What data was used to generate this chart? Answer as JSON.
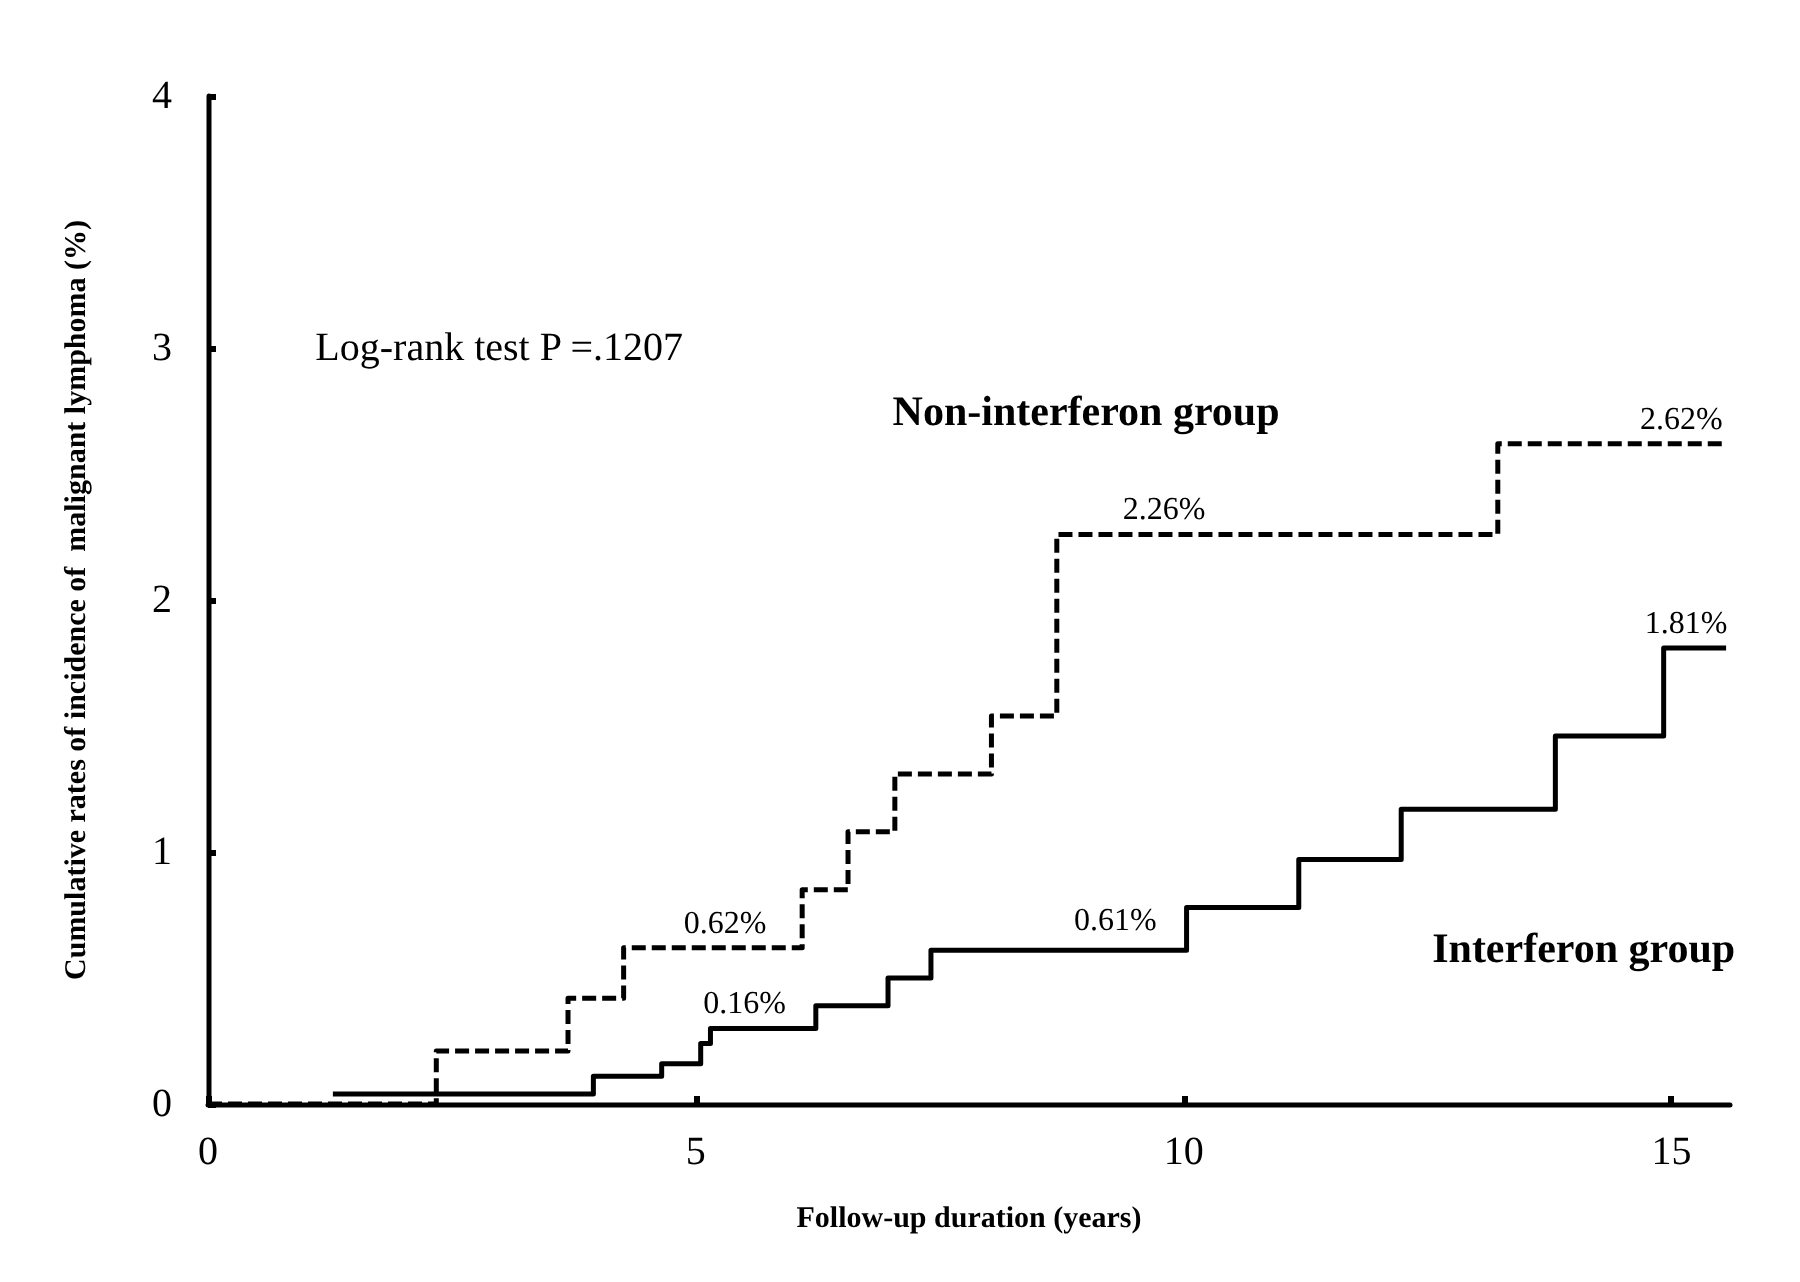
{
  "chart_data": {
    "type": "step",
    "xlabel": "Follow-up duration (years)",
    "ylabel": "Cumulative rates of incidence of  malignant lymphoma (%)",
    "xlim": [
      0,
      15.6
    ],
    "xticks": [
      0,
      5,
      10,
      15
    ],
    "ylim": [
      0,
      4
    ],
    "yticks": [
      0,
      1,
      2,
      3,
      4
    ],
    "grid": false,
    "legend": false,
    "marker": "none",
    "series": [
      {
        "name": "Non-interferon group",
        "color": "#000000",
        "line_style": "dashed",
        "x": [
          0,
          2.34,
          3.69,
          4.26,
          6.09,
          6.56,
          7.04,
          8.03,
          8.7,
          13.22,
          15.54
        ],
        "values": [
          0,
          0.21,
          0.42,
          0.62,
          0.85,
          1.08,
          1.31,
          1.54,
          2.26,
          2.62,
          2.62
        ]
      },
      {
        "name": "Interferon group",
        "color": "#000000",
        "line_style": "solid",
        "x": [
          1.28,
          3.95,
          4.65,
          5.05,
          5.15,
          6.23,
          6.97,
          7.41,
          10.03,
          11.18,
          12.23,
          13.81,
          14.92,
          15.56
        ],
        "values": [
          0.04,
          0.11,
          0.16,
          0.24,
          0.3,
          0.39,
          0.5,
          0.61,
          0.78,
          0.97,
          1.17,
          1.46,
          1.81,
          1.81
        ]
      }
    ],
    "annotations": [
      "Log-rank test P =.1207",
      {
        "text": "0.62%",
        "x": 5.3,
        "y": 0.62
      },
      {
        "text": "0.16%",
        "x": 5.5,
        "y": 0.3
      },
      {
        "text": "2.26%",
        "x": 9.8,
        "y": 2.26
      },
      {
        "text": "2.62%",
        "x": 15.1,
        "y": 2.62
      },
      {
        "text": "0.61%",
        "x": 9.3,
        "y": 0.63
      },
      {
        "text": "1.81%",
        "x": 15.15,
        "y": 1.81
      }
    ]
  }
}
